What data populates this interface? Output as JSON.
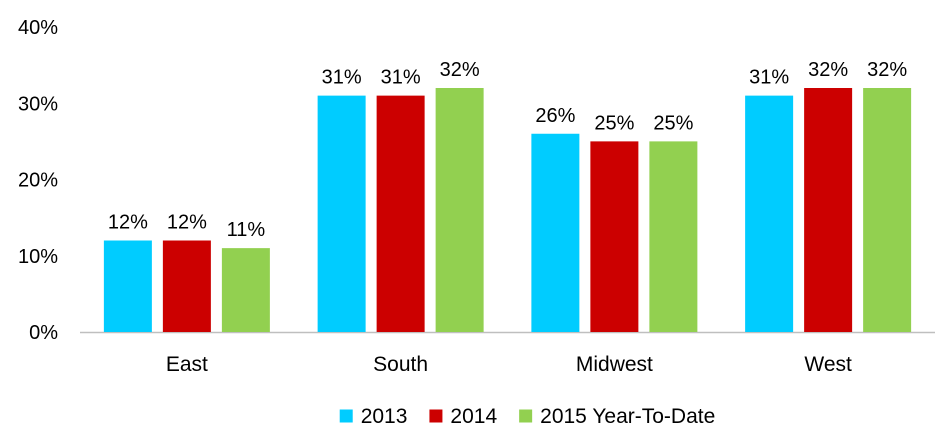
{
  "chart_data": {
    "type": "bar",
    "categories": [
      "East",
      "South",
      "Midwest",
      "West"
    ],
    "series": [
      {
        "name": "2013",
        "values": [
          12,
          31,
          26,
          31
        ],
        "labels": [
          "12%",
          "31%",
          "26%",
          "31%"
        ],
        "color": "#00ccff"
      },
      {
        "name": "2014",
        "values": [
          12,
          31,
          25,
          32
        ],
        "labels": [
          "12%",
          "31%",
          "25%",
          "32%"
        ],
        "color": "#cc0000"
      },
      {
        "name": "2015 Year-To-Date",
        "values": [
          11,
          32,
          25,
          32
        ],
        "labels": [
          "11%",
          "32%",
          "25%",
          "32%"
        ],
        "color": "#92d050"
      }
    ],
    "yticks": [
      "0%",
      "10%",
      "20%",
      "30%",
      "40%"
    ],
    "ylim": [
      0,
      40
    ],
    "title": "",
    "xlabel": "",
    "ylabel": "",
    "grid": false,
    "legend_position": "bottom"
  }
}
